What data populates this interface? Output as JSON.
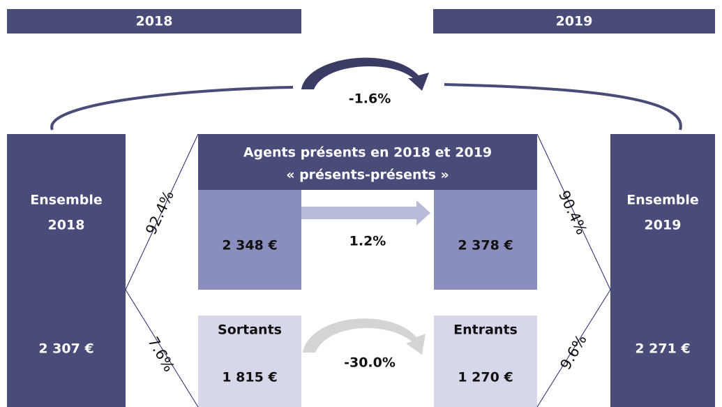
{
  "header": {
    "left_year": "2018",
    "right_year": "2019"
  },
  "overall": {
    "change": "-1.6%",
    "left": {
      "label_line1": "Ensemble",
      "label_line2": "2018",
      "value": "2 307 €"
    },
    "right": {
      "label_line1": "Ensemble",
      "label_line2": "2019",
      "value": "2 271 €"
    }
  },
  "present": {
    "title_line1": "Agents présents en 2018 et 2019",
    "title_line2": "« présents-présents »",
    "value_2018": "2 348 €",
    "change": "1.2%",
    "value_2019": "2 378 €"
  },
  "movers": {
    "out_label": "Sortants",
    "out_value": "1 815 €",
    "change": "-30.0%",
    "in_label": "Entrants",
    "in_value": "1 270 €"
  },
  "shares": {
    "left_present": "92.4%",
    "left_out": "7.6%",
    "right_present": "90.4%",
    "right_in": "9.6%"
  }
}
